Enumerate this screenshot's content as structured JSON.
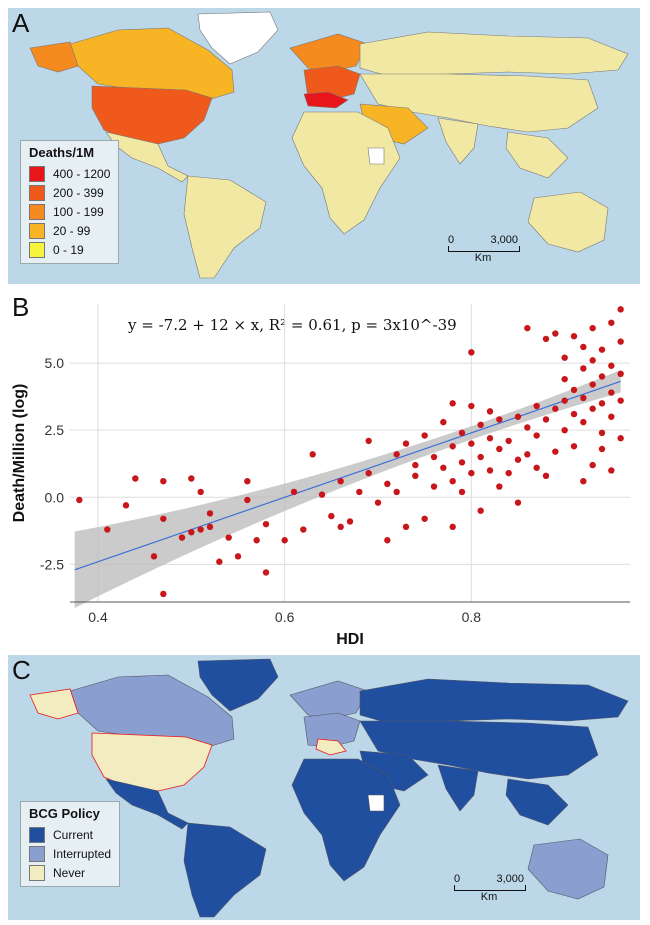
{
  "panel_a": {
    "letter": "A",
    "legend_title": "Deaths/1M",
    "legend": [
      {
        "label": "400 - 1200",
        "color": "#e8161b"
      },
      {
        "label": "200 - 399",
        "color": "#ef5a1c"
      },
      {
        "label": "100 - 199",
        "color": "#f58a1f"
      },
      {
        "label": "20 - 99",
        "color": "#f7b526"
      },
      {
        "label": "0 - 19",
        "color": "#f6f53b"
      }
    ],
    "base_fill": "#f1e8a4",
    "ocean": "#bcd8e8",
    "scale": {
      "start": "0",
      "end": "3,000",
      "unit": "Km"
    }
  },
  "panel_b": {
    "letter": "B",
    "equation": "y = -7.2 + 12 × x,  R² = 0.61,  p = 3x10^-39"
  },
  "chart_data": {
    "type": "scatter",
    "xlabel": "HDI",
    "ylabel": "Death/Million (log)",
    "xlim": [
      0.37,
      0.97
    ],
    "ylim": [
      -3.9,
      7.2
    ],
    "xticks": [
      0.4,
      0.6,
      0.8
    ],
    "xtick_labels": [
      "0.4",
      "0.6",
      "0.8"
    ],
    "yticks": [
      -2.5,
      0,
      2.5,
      5
    ],
    "ytick_labels": [
      "-2.5",
      "0.0",
      "2.5",
      "5.0"
    ],
    "grid": true,
    "point_color": "#c8161b",
    "fit": {
      "intercept": -7.2,
      "slope": 12,
      "color": "#3d6fd8",
      "band_color": "#b9b9b9"
    },
    "points": [
      [
        0.38,
        -0.1
      ],
      [
        0.41,
        -1.2
      ],
      [
        0.43,
        -0.3
      ],
      [
        0.44,
        0.7
      ],
      [
        0.46,
        -2.2
      ],
      [
        0.47,
        -3.6
      ],
      [
        0.47,
        -0.8
      ],
      [
        0.47,
        0.6
      ],
      [
        0.49,
        -1.5
      ],
      [
        0.5,
        0.7
      ],
      [
        0.5,
        -1.3
      ],
      [
        0.51,
        -1.2
      ],
      [
        0.51,
        0.2
      ],
      [
        0.52,
        -0.6
      ],
      [
        0.52,
        -1.1
      ],
      [
        0.53,
        -2.4
      ],
      [
        0.54,
        -1.5
      ],
      [
        0.55,
        -2.2
      ],
      [
        0.56,
        -0.1
      ],
      [
        0.56,
        0.6
      ],
      [
        0.57,
        -1.6
      ],
      [
        0.58,
        -2.8
      ],
      [
        0.58,
        -1.0
      ],
      [
        0.6,
        -1.6
      ],
      [
        0.61,
        0.2
      ],
      [
        0.62,
        -1.2
      ],
      [
        0.63,
        1.6
      ],
      [
        0.64,
        0.1
      ],
      [
        0.65,
        -0.7
      ],
      [
        0.66,
        -1.1
      ],
      [
        0.66,
        0.6
      ],
      [
        0.67,
        -0.9
      ],
      [
        0.68,
        0.2
      ],
      [
        0.69,
        2.1
      ],
      [
        0.69,
        0.9
      ],
      [
        0.7,
        -0.2
      ],
      [
        0.71,
        -1.6
      ],
      [
        0.71,
        0.5
      ],
      [
        0.72,
        0.2
      ],
      [
        0.72,
        1.6
      ],
      [
        0.73,
        -1.1
      ],
      [
        0.73,
        2.0
      ],
      [
        0.74,
        0.8
      ],
      [
        0.74,
        1.2
      ],
      [
        0.75,
        -0.8
      ],
      [
        0.75,
        2.3
      ],
      [
        0.76,
        0.4
      ],
      [
        0.76,
        1.5
      ],
      [
        0.77,
        1.1
      ],
      [
        0.77,
        2.8
      ],
      [
        0.78,
        0.6
      ],
      [
        0.78,
        1.9
      ],
      [
        0.78,
        3.5
      ],
      [
        0.78,
        -1.1
      ],
      [
        0.79,
        0.2
      ],
      [
        0.79,
        1.3
      ],
      [
        0.79,
        2.4
      ],
      [
        0.8,
        0.9
      ],
      [
        0.8,
        2.0
      ],
      [
        0.8,
        3.4
      ],
      [
        0.8,
        5.4
      ],
      [
        0.81,
        1.5
      ],
      [
        0.81,
        2.7
      ],
      [
        0.81,
        -0.5
      ],
      [
        0.82,
        1.0
      ],
      [
        0.82,
        2.2
      ],
      [
        0.82,
        3.2
      ],
      [
        0.83,
        0.4
      ],
      [
        0.83,
        1.8
      ],
      [
        0.83,
        2.9
      ],
      [
        0.84,
        0.9
      ],
      [
        0.84,
        2.1
      ],
      [
        0.85,
        1.4
      ],
      [
        0.85,
        3.0
      ],
      [
        0.85,
        -0.2
      ],
      [
        0.86,
        1.6
      ],
      [
        0.86,
        2.6
      ],
      [
        0.86,
        6.3
      ],
      [
        0.87,
        1.1
      ],
      [
        0.87,
        2.3
      ],
      [
        0.87,
        3.4
      ],
      [
        0.88,
        0.8
      ],
      [
        0.88,
        2.9
      ],
      [
        0.88,
        5.9
      ],
      [
        0.89,
        1.7
      ],
      [
        0.89,
        3.3
      ],
      [
        0.89,
        6.1
      ],
      [
        0.9,
        2.5
      ],
      [
        0.9,
        3.6
      ],
      [
        0.9,
        4.4
      ],
      [
        0.9,
        5.2
      ],
      [
        0.91,
        1.9
      ],
      [
        0.91,
        3.1
      ],
      [
        0.91,
        4.0
      ],
      [
        0.91,
        6.0
      ],
      [
        0.92,
        0.6
      ],
      [
        0.92,
        2.8
      ],
      [
        0.92,
        3.7
      ],
      [
        0.92,
        4.8
      ],
      [
        0.92,
        5.6
      ],
      [
        0.93,
        1.2
      ],
      [
        0.93,
        3.3
      ],
      [
        0.93,
        4.2
      ],
      [
        0.93,
        5.1
      ],
      [
        0.93,
        6.3
      ],
      [
        0.94,
        2.4
      ],
      [
        0.94,
        3.5
      ],
      [
        0.94,
        4.5
      ],
      [
        0.94,
        5.5
      ],
      [
        0.94,
        1.8
      ],
      [
        0.95,
        3.0
      ],
      [
        0.95,
        3.9
      ],
      [
        0.95,
        4.9
      ],
      [
        0.95,
        6.5
      ],
      [
        0.95,
        1.0
      ],
      [
        0.96,
        2.2
      ],
      [
        0.96,
        3.6
      ],
      [
        0.96,
        4.6
      ],
      [
        0.96,
        5.8
      ],
      [
        0.96,
        7.0
      ]
    ]
  },
  "panel_c": {
    "letter": "C",
    "legend_title": "BCG Policy",
    "legend": [
      {
        "label": "Current",
        "color": "#1f4f9e"
      },
      {
        "label": "Interrupted",
        "color": "#8a9ed0"
      },
      {
        "label": "Never",
        "color": "#f3ecc0"
      }
    ],
    "ocean": "#bcd8e8",
    "scale": {
      "start": "0",
      "end": "3,000",
      "unit": "Km"
    }
  }
}
